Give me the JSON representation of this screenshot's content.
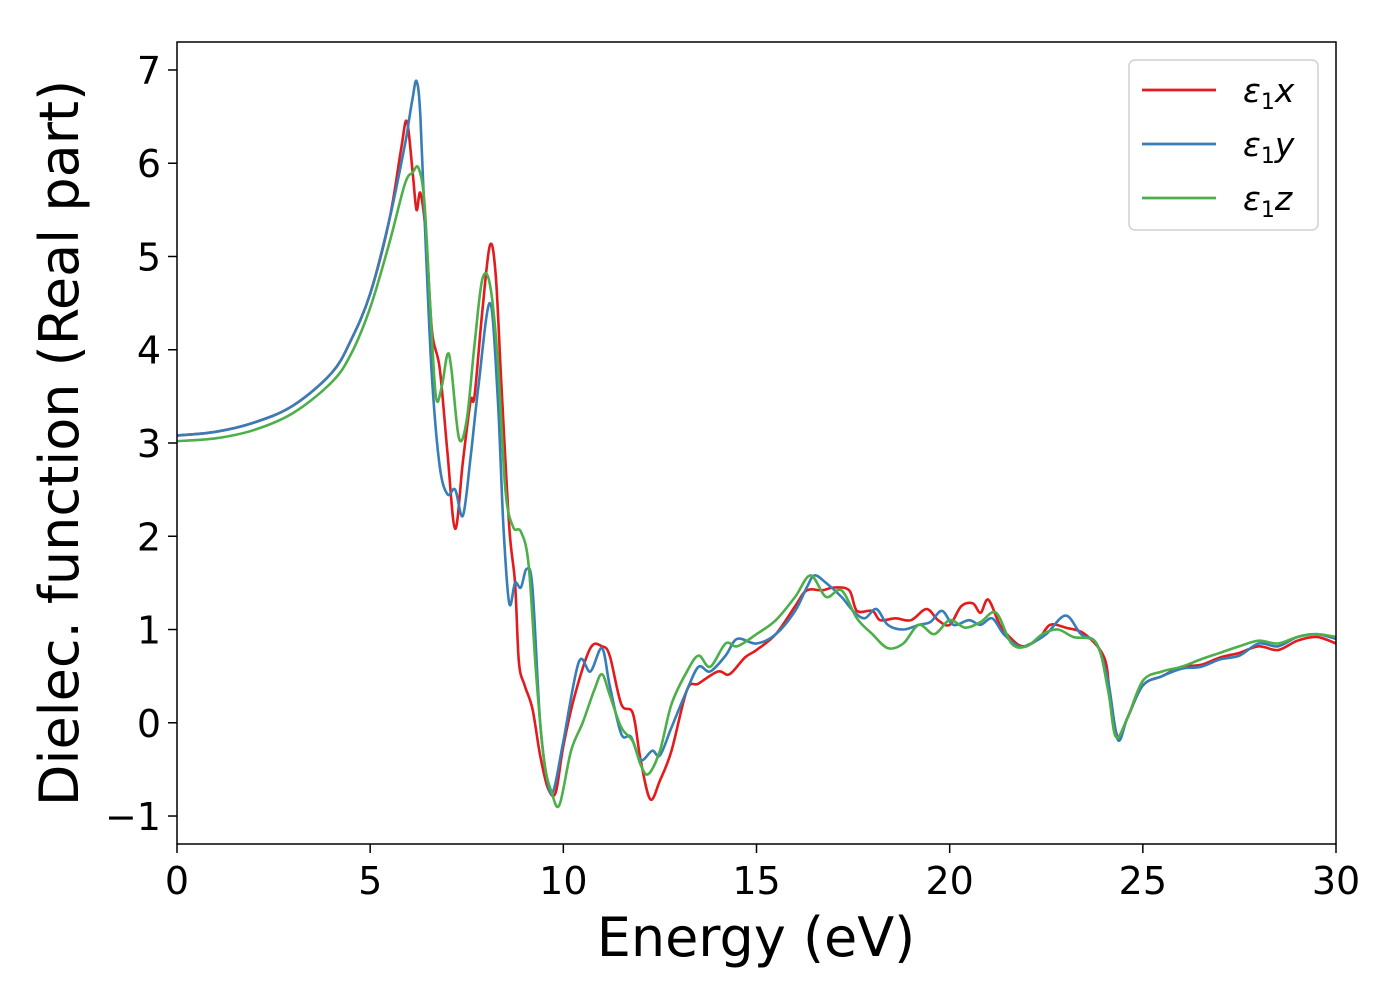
{
  "chart_data": {
    "type": "line",
    "title": "",
    "xlabel": "Energy (eV)",
    "ylabel": "Dielec. function (Real part)",
    "xlim": [
      0,
      30
    ],
    "ylim": [
      -1.3,
      7.3
    ],
    "xticks": [
      0,
      5,
      10,
      15,
      20,
      25,
      30
    ],
    "xtick_labels": [
      "0",
      "5",
      "10",
      "15",
      "20",
      "25",
      "30"
    ],
    "yticks": [
      -1,
      0,
      1,
      2,
      3,
      4,
      5,
      6,
      7
    ],
    "ytick_labels": [
      "−1",
      "0",
      "1",
      "2",
      "3",
      "4",
      "5",
      "6",
      "7"
    ],
    "grid": false,
    "legend_position": "top-right",
    "series": [
      {
        "name": "ε₁x",
        "symbol": "ε",
        "subscript": "1",
        "component": "x",
        "color": "#e41a1c",
        "points": [
          [
            0,
            3.08
          ],
          [
            1,
            3.12
          ],
          [
            2,
            3.22
          ],
          [
            3,
            3.4
          ],
          [
            4,
            3.75
          ],
          [
            4.5,
            4.1
          ],
          [
            5,
            4.6
          ],
          [
            5.5,
            5.4
          ],
          [
            5.8,
            6.15
          ],
          [
            5.95,
            6.45
          ],
          [
            6.1,
            5.9
          ],
          [
            6.2,
            5.5
          ],
          [
            6.3,
            5.68
          ],
          [
            6.45,
            5.2
          ],
          [
            6.6,
            4.2
          ],
          [
            6.8,
            3.8
          ],
          [
            7.0,
            2.9
          ],
          [
            7.2,
            2.08
          ],
          [
            7.4,
            2.8
          ],
          [
            7.6,
            3.45
          ],
          [
            7.7,
            3.5
          ],
          [
            7.9,
            4.4
          ],
          [
            8.1,
            5.12
          ],
          [
            8.25,
            4.8
          ],
          [
            8.4,
            3.6
          ],
          [
            8.6,
            2.1
          ],
          [
            8.75,
            1.5
          ],
          [
            8.85,
            0.65
          ],
          [
            9.0,
            0.4
          ],
          [
            9.2,
            0.15
          ],
          [
            9.4,
            -0.35
          ],
          [
            9.6,
            -0.7
          ],
          [
            9.8,
            -0.75
          ],
          [
            10.0,
            -0.25
          ],
          [
            10.3,
            0.3
          ],
          [
            10.7,
            0.8
          ],
          [
            11.0,
            0.82
          ],
          [
            11.2,
            0.72
          ],
          [
            11.5,
            0.2
          ],
          [
            11.8,
            0.1
          ],
          [
            12.0,
            -0.4
          ],
          [
            12.25,
            -0.82
          ],
          [
            12.5,
            -0.62
          ],
          [
            12.8,
            -0.3
          ],
          [
            13.2,
            0.35
          ],
          [
            13.5,
            0.42
          ],
          [
            14.0,
            0.55
          ],
          [
            14.3,
            0.52
          ],
          [
            14.7,
            0.7
          ],
          [
            15.0,
            0.78
          ],
          [
            15.5,
            0.95
          ],
          [
            16.0,
            1.25
          ],
          [
            16.3,
            1.42
          ],
          [
            16.7,
            1.42
          ],
          [
            17.0,
            1.45
          ],
          [
            17.4,
            1.42
          ],
          [
            17.6,
            1.2
          ],
          [
            18.0,
            1.2
          ],
          [
            18.2,
            1.1
          ],
          [
            18.6,
            1.12
          ],
          [
            19.0,
            1.1
          ],
          [
            19.4,
            1.22
          ],
          [
            19.7,
            1.1
          ],
          [
            20.0,
            1.05
          ],
          [
            20.3,
            1.25
          ],
          [
            20.6,
            1.28
          ],
          [
            20.8,
            1.18
          ],
          [
            21.0,
            1.32
          ],
          [
            21.3,
            1.05
          ],
          [
            21.6,
            0.9
          ],
          [
            21.9,
            0.82
          ],
          [
            22.3,
            0.9
          ],
          [
            22.6,
            1.05
          ],
          [
            23.0,
            1.02
          ],
          [
            23.5,
            0.95
          ],
          [
            24.0,
            0.7
          ],
          [
            24.15,
            0.3
          ],
          [
            24.35,
            -0.15
          ],
          [
            24.6,
            0.05
          ],
          [
            25.0,
            0.4
          ],
          [
            25.5,
            0.5
          ],
          [
            26.0,
            0.6
          ],
          [
            26.5,
            0.62
          ],
          [
            27.0,
            0.7
          ],
          [
            27.5,
            0.75
          ],
          [
            28.0,
            0.82
          ],
          [
            28.5,
            0.78
          ],
          [
            29.0,
            0.88
          ],
          [
            29.5,
            0.92
          ],
          [
            30.0,
            0.85
          ]
        ]
      },
      {
        "name": "ε₁y",
        "symbol": "ε",
        "subscript": "1",
        "component": "y",
        "color": "#377eb8",
        "points": [
          [
            0,
            3.08
          ],
          [
            1,
            3.12
          ],
          [
            2,
            3.22
          ],
          [
            3,
            3.4
          ],
          [
            4,
            3.75
          ],
          [
            4.5,
            4.1
          ],
          [
            5,
            4.6
          ],
          [
            5.5,
            5.4
          ],
          [
            5.9,
            6.2
          ],
          [
            6.0,
            6.45
          ],
          [
            6.1,
            6.7
          ],
          [
            6.2,
            6.88
          ],
          [
            6.3,
            6.5
          ],
          [
            6.45,
            5.0
          ],
          [
            6.6,
            3.7
          ],
          [
            6.8,
            2.75
          ],
          [
            7.0,
            2.45
          ],
          [
            7.2,
            2.5
          ],
          [
            7.4,
            2.22
          ],
          [
            7.6,
            2.85
          ],
          [
            7.8,
            3.6
          ],
          [
            8.1,
            4.5
          ],
          [
            8.3,
            3.5
          ],
          [
            8.45,
            2.1
          ],
          [
            8.6,
            1.28
          ],
          [
            8.75,
            1.5
          ],
          [
            8.9,
            1.45
          ],
          [
            9.05,
            1.65
          ],
          [
            9.2,
            1.45
          ],
          [
            9.4,
            0.0
          ],
          [
            9.6,
            -0.65
          ],
          [
            9.75,
            -0.72
          ],
          [
            10.0,
            -0.2
          ],
          [
            10.4,
            0.65
          ],
          [
            10.7,
            0.55
          ],
          [
            11.0,
            0.8
          ],
          [
            11.2,
            0.4
          ],
          [
            11.5,
            -0.12
          ],
          [
            11.75,
            -0.15
          ],
          [
            12.0,
            -0.4
          ],
          [
            12.3,
            -0.3
          ],
          [
            12.5,
            -0.35
          ],
          [
            12.8,
            -0.05
          ],
          [
            13.2,
            0.35
          ],
          [
            13.5,
            0.6
          ],
          [
            13.8,
            0.55
          ],
          [
            14.2,
            0.72
          ],
          [
            14.5,
            0.9
          ],
          [
            15.0,
            0.85
          ],
          [
            15.5,
            0.95
          ],
          [
            16.0,
            1.2
          ],
          [
            16.3,
            1.45
          ],
          [
            16.5,
            1.58
          ],
          [
            16.8,
            1.5
          ],
          [
            17.2,
            1.35
          ],
          [
            17.5,
            1.2
          ],
          [
            17.8,
            1.12
          ],
          [
            18.1,
            1.22
          ],
          [
            18.4,
            1.05
          ],
          [
            18.8,
            1.0
          ],
          [
            19.2,
            1.05
          ],
          [
            19.5,
            1.08
          ],
          [
            19.8,
            1.2
          ],
          [
            20.1,
            1.05
          ],
          [
            20.5,
            1.1
          ],
          [
            20.8,
            1.05
          ],
          [
            21.1,
            1.12
          ],
          [
            21.4,
            0.95
          ],
          [
            21.8,
            0.82
          ],
          [
            22.1,
            0.85
          ],
          [
            22.5,
            0.95
          ],
          [
            23.0,
            1.15
          ],
          [
            23.4,
            0.95
          ],
          [
            23.8,
            0.85
          ],
          [
            24.1,
            0.45
          ],
          [
            24.35,
            -0.18
          ],
          [
            24.6,
            0.05
          ],
          [
            25.0,
            0.4
          ],
          [
            25.5,
            0.5
          ],
          [
            26.0,
            0.58
          ],
          [
            26.5,
            0.6
          ],
          [
            27.0,
            0.68
          ],
          [
            27.5,
            0.72
          ],
          [
            28.0,
            0.85
          ],
          [
            28.5,
            0.82
          ],
          [
            29.0,
            0.92
          ],
          [
            29.5,
            0.95
          ],
          [
            30.0,
            0.9
          ]
        ]
      },
      {
        "name": "ε₁z",
        "symbol": "ε",
        "subscript": "1",
        "component": "z",
        "color": "#4daf4a",
        "points": [
          [
            0,
            3.02
          ],
          [
            1,
            3.05
          ],
          [
            2,
            3.14
          ],
          [
            3,
            3.32
          ],
          [
            4,
            3.65
          ],
          [
            4.5,
            3.95
          ],
          [
            5,
            4.45
          ],
          [
            5.5,
            5.15
          ],
          [
            5.9,
            5.78
          ],
          [
            6.1,
            5.9
          ],
          [
            6.25,
            5.95
          ],
          [
            6.4,
            5.6
          ],
          [
            6.55,
            4.5
          ],
          [
            6.7,
            3.5
          ],
          [
            6.85,
            3.6
          ],
          [
            7.0,
            3.95
          ],
          [
            7.1,
            3.8
          ],
          [
            7.3,
            3.05
          ],
          [
            7.5,
            3.25
          ],
          [
            7.7,
            4.05
          ],
          [
            7.9,
            4.75
          ],
          [
            8.1,
            4.7
          ],
          [
            8.3,
            3.9
          ],
          [
            8.5,
            2.5
          ],
          [
            8.7,
            2.1
          ],
          [
            8.9,
            2.05
          ],
          [
            9.1,
            1.7
          ],
          [
            9.3,
            0.5
          ],
          [
            9.5,
            -0.4
          ],
          [
            9.7,
            -0.75
          ],
          [
            9.9,
            -0.88
          ],
          [
            10.2,
            -0.3
          ],
          [
            10.5,
            0.0
          ],
          [
            10.8,
            0.35
          ],
          [
            11.0,
            0.52
          ],
          [
            11.2,
            0.3
          ],
          [
            11.5,
            -0.05
          ],
          [
            11.8,
            -0.2
          ],
          [
            12.0,
            -0.45
          ],
          [
            12.2,
            -0.55
          ],
          [
            12.5,
            -0.3
          ],
          [
            12.8,
            0.2
          ],
          [
            13.2,
            0.55
          ],
          [
            13.5,
            0.72
          ],
          [
            13.8,
            0.6
          ],
          [
            14.2,
            0.85
          ],
          [
            14.5,
            0.82
          ],
          [
            15.0,
            0.95
          ],
          [
            15.5,
            1.1
          ],
          [
            16.0,
            1.35
          ],
          [
            16.4,
            1.58
          ],
          [
            16.8,
            1.35
          ],
          [
            17.2,
            1.42
          ],
          [
            17.6,
            1.12
          ],
          [
            18.0,
            0.95
          ],
          [
            18.4,
            0.8
          ],
          [
            18.8,
            0.85
          ],
          [
            19.2,
            1.05
          ],
          [
            19.6,
            0.95
          ],
          [
            20.0,
            1.1
          ],
          [
            20.4,
            1.02
          ],
          [
            20.8,
            1.08
          ],
          [
            21.2,
            1.18
          ],
          [
            21.6,
            0.85
          ],
          [
            22.0,
            0.82
          ],
          [
            22.4,
            0.95
          ],
          [
            22.8,
            1.0
          ],
          [
            23.2,
            0.92
          ],
          [
            23.8,
            0.85
          ],
          [
            24.1,
            0.35
          ],
          [
            24.3,
            -0.15
          ],
          [
            24.6,
            0.05
          ],
          [
            25.0,
            0.45
          ],
          [
            25.5,
            0.55
          ],
          [
            26.0,
            0.6
          ],
          [
            26.5,
            0.68
          ],
          [
            27.0,
            0.75
          ],
          [
            27.5,
            0.82
          ],
          [
            28.0,
            0.88
          ],
          [
            28.5,
            0.85
          ],
          [
            29.0,
            0.92
          ],
          [
            29.5,
            0.95
          ],
          [
            30.0,
            0.92
          ]
        ]
      }
    ]
  }
}
